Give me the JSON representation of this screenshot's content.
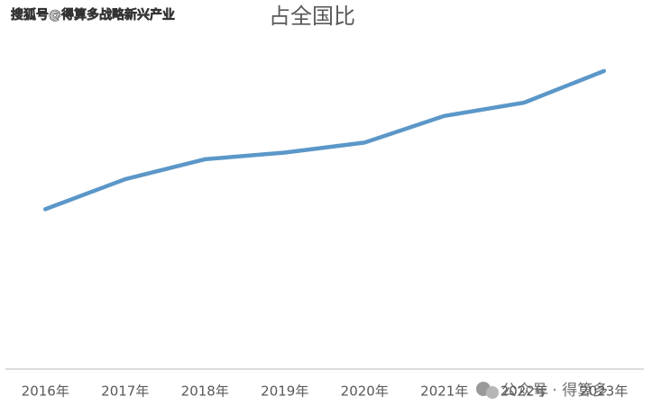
{
  "chart_data": {
    "type": "line",
    "title": "占全国比",
    "categories": [
      "2016年",
      "2017年",
      "2018年",
      "2019年",
      "2020年",
      "2021年",
      "2022年",
      "2023年"
    ],
    "series": [
      {
        "color": "#5b97c8",
        "values": [
          48,
          57,
          63,
          65,
          68,
          76,
          80,
          89.5
        ]
      }
    ],
    "ylim": [
      0,
      100
    ]
  },
  "watermarks": {
    "top_left": "搜狐号@得算多战略新兴产业",
    "bottom_right": "公众号 · 得算多"
  }
}
